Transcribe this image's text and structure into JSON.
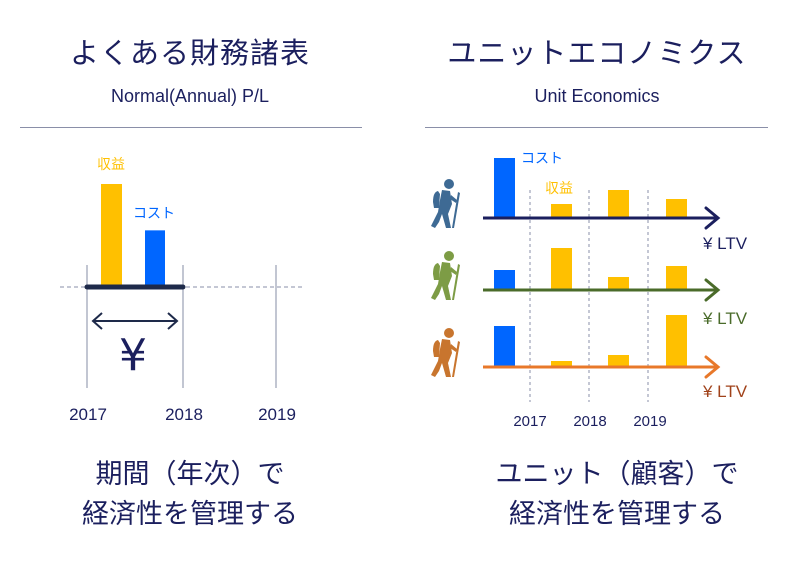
{
  "left": {
    "title": "よくある財務諸表",
    "subtitle": "Normal(Annual) P/L",
    "revenue_label": "収益",
    "cost_label": "コスト",
    "currency_symbol": "¥",
    "years": [
      "2017",
      "2018",
      "2019"
    ],
    "bars": {
      "revenue": 100,
      "cost": 55
    },
    "caption_line1": "期間（年次）で",
    "caption_line2": "経済性を管理する"
  },
  "right": {
    "title": "ユニットエコノミクス",
    "subtitle": "Unit Economics",
    "cost_label": "コスト",
    "revenue_label": "収益",
    "years": [
      "2017",
      "2018",
      "2019"
    ],
    "rows": [
      {
        "ltv_label": "¥ LTV",
        "cost": 60,
        "revenue": [
          14,
          28,
          19
        ],
        "axis_color": "#1b1f5e",
        "hiker_color": "#3e6a94",
        "ltv_color": "#1b1f5e"
      },
      {
        "ltv_label": "¥ LTV",
        "cost": 20,
        "revenue": [
          42,
          13,
          24
        ],
        "axis_color": "#4a6b2a",
        "hiker_color": "#7d9c45",
        "ltv_color": "#4a6b2a"
      },
      {
        "ltv_label": "¥ LTV",
        "cost": 41,
        "revenue": [
          6,
          12,
          52
        ],
        "axis_color": "#e8782a",
        "hiker_color": "#c8752e",
        "ltv_color": "#a0421a"
      }
    ],
    "caption_line1": "ユニット（顧客）で",
    "caption_line2": "経済性を管理する"
  },
  "colors": {
    "revenue": "#ffc000",
    "cost": "#0066ff",
    "text": "#1b1f5e"
  }
}
